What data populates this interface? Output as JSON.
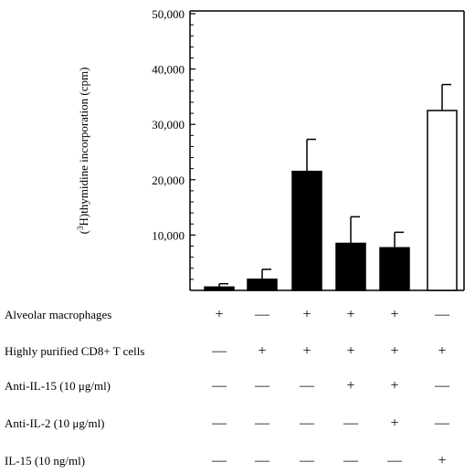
{
  "chart_data": {
    "type": "bar",
    "ylabel_main": ")thymidine incorporation (cpm)",
    "ylabel_prefix": "(",
    "ylabel_sup": "3",
    "ylabel_h": "H",
    "yticks": [
      {
        "value": 10000,
        "label": "10,000"
      },
      {
        "value": 20000,
        "label": "20,000"
      },
      {
        "value": 30000,
        "label": "30,000"
      },
      {
        "value": 40000,
        "label": "40,000"
      },
      {
        "value": 50000,
        "label": "50,000"
      }
    ],
    "ylim": [
      0,
      50000
    ],
    "bars": [
      {
        "value": 600,
        "error": 600,
        "fill": "#000000"
      },
      {
        "value": 2000,
        "error": 1800,
        "fill": "#000000"
      },
      {
        "value": 21500,
        "error": 5800,
        "fill": "#000000"
      },
      {
        "value": 8500,
        "error": 4800,
        "fill": "#000000"
      },
      {
        "value": 7700,
        "error": 2800,
        "fill": "#000000"
      },
      {
        "value": 32500,
        "error": 4700,
        "fill": "#ffffff"
      }
    ]
  },
  "conditions": [
    {
      "label": "Alveolar macrophages",
      "values": [
        "+",
        "—",
        "+",
        "+",
        "+",
        "—"
      ]
    },
    {
      "label": "Highly purified CD8+ T cells",
      "values": [
        "—",
        "+",
        "+",
        "+",
        "+",
        "+"
      ]
    },
    {
      "label": "Anti-IL-15 (10 μg/ml)",
      "values": [
        "—",
        "—",
        "—",
        "+",
        "+",
        "—"
      ]
    },
    {
      "label": "Anti-IL-2  (10 μg/ml)",
      "values": [
        "—",
        "—",
        "—",
        "—",
        "+",
        "—"
      ]
    },
    {
      "label": "IL-15 (10 ng/ml)",
      "values": [
        "—",
        "—",
        "—",
        "—",
        "—",
        "+"
      ]
    }
  ]
}
